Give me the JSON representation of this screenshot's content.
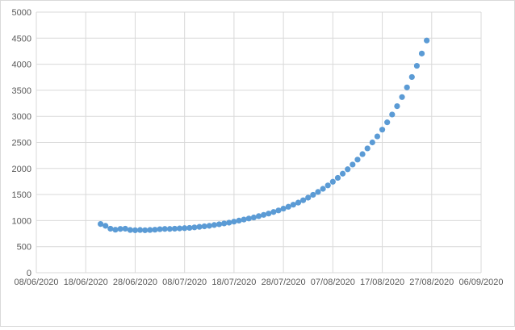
{
  "chart_data": {
    "type": "scatter",
    "title": "",
    "xlabel": "",
    "ylabel": "",
    "x_axis": {
      "type": "date",
      "min": "2020-06-08",
      "max": "2020-09-06",
      "tick_step_days": 10,
      "tick_labels": [
        "08/06/2020",
        "18/06/2020",
        "28/06/2020",
        "08/07/2020",
        "18/07/2020",
        "28/07/2020",
        "07/08/2020",
        "17/08/2020",
        "27/08/2020",
        "06/09/2020"
      ]
    },
    "y_axis": {
      "min": 0,
      "max": 5000,
      "tick_step": 500,
      "tick_labels": [
        "0",
        "500",
        "1000",
        "1500",
        "2000",
        "2500",
        "3000",
        "3500",
        "4000",
        "4500",
        "5000"
      ]
    },
    "grid": true,
    "legend": "none",
    "marker_color": "#5b9bd5",
    "gridline_color": "#d9d9d9",
    "series": [
      {
        "points": [
          [
            "2020-06-21",
            935
          ],
          [
            "2020-06-22",
            900
          ],
          [
            "2020-06-23",
            845
          ],
          [
            "2020-06-24",
            825
          ],
          [
            "2020-06-25",
            840
          ],
          [
            "2020-06-26",
            845
          ],
          [
            "2020-06-27",
            820
          ],
          [
            "2020-06-28",
            815
          ],
          [
            "2020-06-29",
            820
          ],
          [
            "2020-06-30",
            815
          ],
          [
            "2020-07-01",
            820
          ],
          [
            "2020-07-02",
            825
          ],
          [
            "2020-07-03",
            835
          ],
          [
            "2020-07-04",
            840
          ],
          [
            "2020-07-05",
            840
          ],
          [
            "2020-07-06",
            845
          ],
          [
            "2020-07-07",
            850
          ],
          [
            "2020-07-08",
            855
          ],
          [
            "2020-07-09",
            860
          ],
          [
            "2020-07-10",
            870
          ],
          [
            "2020-07-11",
            880
          ],
          [
            "2020-07-12",
            890
          ],
          [
            "2020-07-13",
            900
          ],
          [
            "2020-07-14",
            915
          ],
          [
            "2020-07-15",
            930
          ],
          [
            "2020-07-16",
            945
          ],
          [
            "2020-07-17",
            960
          ],
          [
            "2020-07-18",
            980
          ],
          [
            "2020-07-19",
            1000
          ],
          [
            "2020-07-20",
            1020
          ],
          [
            "2020-07-21",
            1040
          ],
          [
            "2020-07-22",
            1060
          ],
          [
            "2020-07-23",
            1085
          ],
          [
            "2020-07-24",
            1110
          ],
          [
            "2020-07-25",
            1135
          ],
          [
            "2020-07-26",
            1165
          ],
          [
            "2020-07-27",
            1195
          ],
          [
            "2020-07-28",
            1230
          ],
          [
            "2020-07-29",
            1265
          ],
          [
            "2020-07-30",
            1305
          ],
          [
            "2020-07-31",
            1345
          ],
          [
            "2020-08-01",
            1390
          ],
          [
            "2020-08-02",
            1440
          ],
          [
            "2020-08-03",
            1495
          ],
          [
            "2020-08-04",
            1550
          ],
          [
            "2020-08-05",
            1610
          ],
          [
            "2020-08-06",
            1675
          ],
          [
            "2020-08-07",
            1745
          ],
          [
            "2020-08-08",
            1820
          ],
          [
            "2020-08-09",
            1900
          ],
          [
            "2020-08-10",
            1985
          ],
          [
            "2020-08-11",
            2075
          ],
          [
            "2020-08-12",
            2170
          ],
          [
            "2020-08-13",
            2275
          ],
          [
            "2020-08-14",
            2385
          ],
          [
            "2020-08-15",
            2500
          ],
          [
            "2020-08-16",
            2615
          ],
          [
            "2020-08-17",
            2745
          ],
          [
            "2020-08-18",
            2885
          ],
          [
            "2020-08-19",
            3035
          ],
          [
            "2020-08-20",
            3195
          ],
          [
            "2020-08-21",
            3370
          ],
          [
            "2020-08-22",
            3555
          ],
          [
            "2020-08-23",
            3755
          ],
          [
            "2020-08-24",
            3970
          ],
          [
            "2020-08-25",
            4205
          ],
          [
            "2020-08-26",
            4455
          ]
        ]
      }
    ]
  }
}
